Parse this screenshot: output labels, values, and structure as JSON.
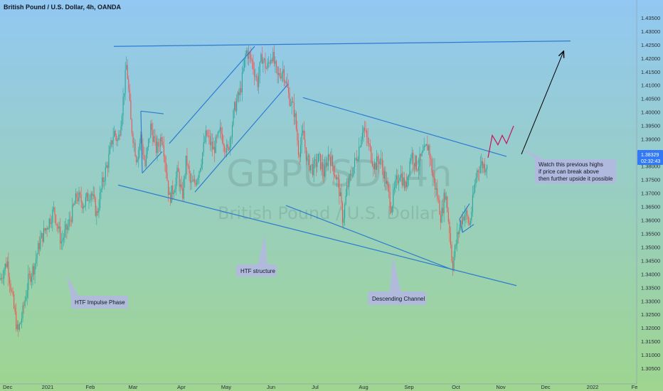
{
  "header": {
    "title": "British Pound / U.S. Dollar, 4h, OANDA"
  },
  "watermark": {
    "symbol": "GBPUSD, 4h",
    "name": "British Pound / U.S. Dollar"
  },
  "price_badge": {
    "price": "1.38329",
    "countdown": "02:32:43",
    "color": "#3179f5"
  },
  "colors": {
    "up_candle": "#26a69a",
    "down_candle": "#ef5350",
    "trendline": "#2b7bd1",
    "projection": "#c2185b",
    "arrow": "#000000",
    "callout_bg": "#b3b8e0",
    "bg_top": "#92c8f2",
    "bg_bottom": "#9fd58f"
  },
  "chart_data": {
    "type": "candlestick",
    "symbol": "GBPUSD",
    "timeframe": "4h",
    "source": "OANDA",
    "ylim": [
      1.302,
      1.438
    ],
    "y_ticks": [
      "1.30500",
      "1.31000",
      "1.31500",
      "1.32000",
      "1.32500",
      "1.33000",
      "1.33500",
      "1.34000",
      "1.34500",
      "1.35000",
      "1.35500",
      "1.36000",
      "1.36500",
      "1.37000",
      "1.37500",
      "1.38000",
      "1.38500",
      "1.39000",
      "1.39500",
      "1.40000",
      "1.40500",
      "1.41000",
      "1.41500",
      "1.42000",
      "1.42500",
      "1.43000",
      "1.43500"
    ],
    "x_ticks": [
      "Dec",
      "2021",
      "Feb",
      "Mar",
      "Apr",
      "May",
      "Jun",
      "Jul",
      "Aug",
      "Sep",
      "Oct",
      "Nov",
      "Dec",
      "2022",
      "Fe"
    ],
    "last_price": 1.38329,
    "price_path": [
      [
        0,
        1.338
      ],
      [
        10,
        1.345
      ],
      [
        18,
        1.33
      ],
      [
        25,
        1.318
      ],
      [
        32,
        1.326
      ],
      [
        40,
        1.338
      ],
      [
        48,
        1.343
      ],
      [
        56,
        1.352
      ],
      [
        66,
        1.358
      ],
      [
        76,
        1.364
      ],
      [
        86,
        1.352
      ],
      [
        96,
        1.358
      ],
      [
        108,
        1.369
      ],
      [
        118,
        1.366
      ],
      [
        128,
        1.371
      ],
      [
        136,
        1.362
      ],
      [
        144,
        1.374
      ],
      [
        152,
        1.382
      ],
      [
        160,
        1.393
      ],
      [
        166,
        1.389
      ],
      [
        172,
        1.402
      ],
      [
        178,
        1.418
      ],
      [
        184,
        1.396
      ],
      [
        192,
        1.383
      ],
      [
        198,
        1.391
      ],
      [
        204,
        1.38
      ],
      [
        212,
        1.395
      ],
      [
        220,
        1.386
      ],
      [
        228,
        1.392
      ],
      [
        234,
        1.378
      ],
      [
        238,
        1.368
      ],
      [
        244,
        1.372
      ],
      [
        250,
        1.378
      ],
      [
        256,
        1.368
      ],
      [
        262,
        1.383
      ],
      [
        268,
        1.373
      ],
      [
        274,
        1.374
      ],
      [
        280,
        1.379
      ],
      [
        290,
        1.392
      ],
      [
        300,
        1.386
      ],
      [
        310,
        1.393
      ],
      [
        320,
        1.385
      ],
      [
        330,
        1.402
      ],
      [
        338,
        1.408
      ],
      [
        346,
        1.423
      ],
      [
        354,
        1.419
      ],
      [
        362,
        1.411
      ],
      [
        368,
        1.421
      ],
      [
        375,
        1.416
      ],
      [
        382,
        1.422
      ],
      [
        390,
        1.413
      ],
      [
        398,
        1.416
      ],
      [
        406,
        1.406
      ],
      [
        414,
        1.4
      ],
      [
        420,
        1.385
      ],
      [
        426,
        1.392
      ],
      [
        432,
        1.382
      ],
      [
        440,
        1.379
      ],
      [
        448,
        1.383
      ],
      [
        456,
        1.377
      ],
      [
        462,
        1.385
      ],
      [
        468,
        1.38
      ],
      [
        476,
        1.373
      ],
      [
        482,
        1.36
      ],
      [
        488,
        1.372
      ],
      [
        496,
        1.379
      ],
      [
        504,
        1.386
      ],
      [
        510,
        1.395
      ],
      [
        518,
        1.388
      ],
      [
        526,
        1.38
      ],
      [
        534,
        1.383
      ],
      [
        542,
        1.375
      ],
      [
        550,
        1.365
      ],
      [
        556,
        1.373
      ],
      [
        562,
        1.378
      ],
      [
        570,
        1.372
      ],
      [
        578,
        1.385
      ],
      [
        586,
        1.38
      ],
      [
        594,
        1.384
      ],
      [
        602,
        1.388
      ],
      [
        608,
        1.377
      ],
      [
        614,
        1.37
      ],
      [
        620,
        1.361
      ],
      [
        626,
        1.371
      ],
      [
        632,
        1.356
      ],
      [
        636,
        1.343
      ],
      [
        642,
        1.353
      ],
      [
        648,
        1.36
      ],
      [
        654,
        1.363
      ],
      [
        660,
        1.358
      ],
      [
        664,
        1.366
      ],
      [
        670,
        1.378
      ],
      [
        676,
        1.381
      ],
      [
        682,
        1.38
      ],
      [
        686,
        1.383
      ]
    ],
    "annotations": [
      {
        "type": "label",
        "text": "HTF Impulse Phase"
      },
      {
        "type": "label",
        "text": "HTF structure"
      },
      {
        "type": "label",
        "text": "Descending Channel"
      },
      {
        "type": "label",
        "lines": [
          "Watch this previous highs",
          "if price can break above",
          "then further upside it possible"
        ]
      }
    ],
    "drawings": [
      {
        "kind": "horizontal-resistance",
        "from": [
          160,
          1.4245
        ],
        "to": [
          802,
          1.4265
        ]
      },
      {
        "kind": "rising-channel-upper",
        "from": [
          238,
          1.3885
        ],
        "to": [
          358,
          1.4245
        ]
      },
      {
        "kind": "rising-channel-lower",
        "from": [
          274,
          1.3705
        ],
        "to": [
          405,
          1.4105
        ]
      },
      {
        "kind": "descending-channel-upper",
        "from": [
          426,
          1.4055
        ],
        "to": [
          712,
          1.3837
        ]
      },
      {
        "kind": "descending-channel-lower",
        "from": [
          166,
          1.3731
        ],
        "to": [
          726,
          1.3358
        ]
      },
      {
        "kind": "falling-wedge-line",
        "from": [
          402,
          1.3655
        ],
        "to": [
          638,
          1.3415
        ]
      },
      {
        "kind": "flag",
        "points": [
          [
            198,
            1.4005
          ],
          [
            230,
            1.3995
          ],
          [
            200,
            1.3775
          ],
          [
            228,
            1.3855
          ]
        ]
      },
      {
        "kind": "small-flag",
        "points": [
          [
            646,
            1.3605
          ],
          [
            660,
            1.3662
          ],
          [
            650,
            1.3555
          ],
          [
            666,
            1.3585
          ]
        ]
      },
      {
        "kind": "projection-zigzag",
        "points": [
          [
            686,
            1.3832
          ],
          [
            692,
            1.3915
          ],
          [
            700,
            1.388
          ],
          [
            706,
            1.3915
          ],
          [
            712,
            1.3885
          ],
          [
            722,
            1.395
          ]
        ]
      },
      {
        "kind": "arrow",
        "from": [
          733,
          1.3845
        ],
        "to": [
          792,
          1.4225
        ]
      }
    ]
  }
}
